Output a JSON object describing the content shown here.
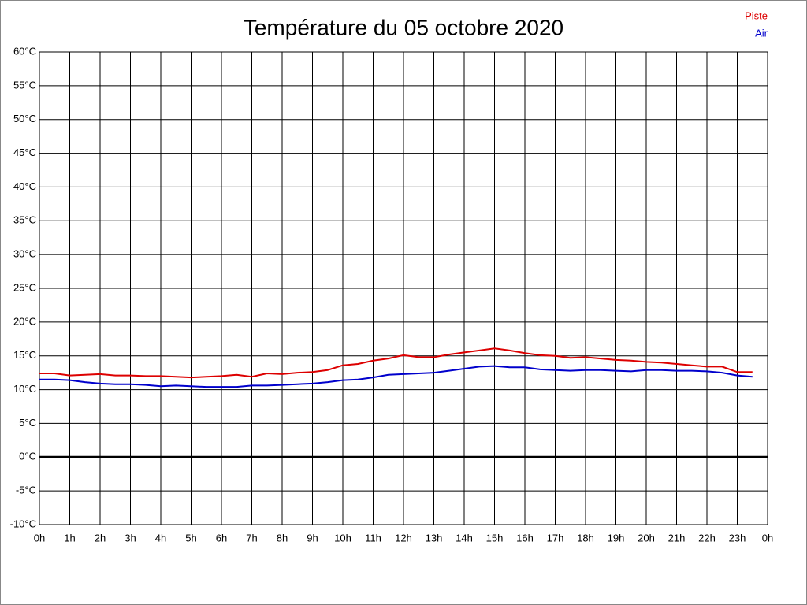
{
  "chart_data": {
    "type": "line",
    "title": "Température du 05 octobre 2020",
    "x": [
      0,
      0.5,
      1,
      1.5,
      2,
      2.5,
      3,
      3.5,
      4,
      4.5,
      5,
      5.5,
      6,
      6.5,
      7,
      7.5,
      8,
      8.5,
      9,
      9.5,
      10,
      10.5,
      11,
      11.5,
      12,
      12.5,
      13,
      13.5,
      14,
      14.5,
      15,
      15.5,
      16,
      16.5,
      17,
      17.5,
      18,
      18.5,
      19,
      19.5,
      20,
      20.5,
      21,
      21.5,
      22,
      22.5,
      23,
      23.5
    ],
    "series": [
      {
        "name": "Piste",
        "color": "#dd0000",
        "values": [
          12.4,
          12.4,
          12.1,
          12.2,
          12.3,
          12.1,
          12.1,
          12.0,
          12.0,
          11.9,
          11.8,
          11.9,
          12.0,
          12.2,
          11.9,
          12.4,
          12.3,
          12.5,
          12.6,
          12.9,
          13.6,
          13.8,
          14.3,
          14.6,
          15.1,
          14.8,
          14.8,
          15.2,
          15.5,
          15.8,
          16.1,
          15.8,
          15.4,
          15.1,
          15.0,
          14.7,
          14.8,
          14.6,
          14.4,
          14.3,
          14.1,
          14.0,
          13.8,
          13.6,
          13.4,
          13.4,
          12.6,
          12.6
        ]
      },
      {
        "name": "Air",
        "color": "#0000cc",
        "values": [
          11.5,
          11.5,
          11.4,
          11.1,
          10.9,
          10.8,
          10.8,
          10.7,
          10.5,
          10.6,
          10.5,
          10.4,
          10.4,
          10.4,
          10.6,
          10.6,
          10.7,
          10.8,
          10.9,
          11.1,
          11.4,
          11.5,
          11.8,
          12.2,
          12.3,
          12.4,
          12.5,
          12.8,
          13.1,
          13.4,
          13.5,
          13.3,
          13.3,
          13.0,
          12.9,
          12.8,
          12.9,
          12.9,
          12.8,
          12.7,
          12.9,
          12.9,
          12.8,
          12.8,
          12.7,
          12.5,
          12.1,
          11.9
        ]
      }
    ],
    "xlim": [
      0,
      24
    ],
    "xticks": [
      {
        "value": 0,
        "label": "0h"
      },
      {
        "value": 1,
        "label": "1h"
      },
      {
        "value": 2,
        "label": "2h"
      },
      {
        "value": 3,
        "label": "3h"
      },
      {
        "value": 4,
        "label": "4h"
      },
      {
        "value": 5,
        "label": "5h"
      },
      {
        "value": 6,
        "label": "6h"
      },
      {
        "value": 7,
        "label": "7h"
      },
      {
        "value": 8,
        "label": "8h"
      },
      {
        "value": 9,
        "label": "9h"
      },
      {
        "value": 10,
        "label": "10h"
      },
      {
        "value": 11,
        "label": "11h"
      },
      {
        "value": 12,
        "label": "12h"
      },
      {
        "value": 13,
        "label": "13h"
      },
      {
        "value": 14,
        "label": "14h"
      },
      {
        "value": 15,
        "label": "15h"
      },
      {
        "value": 16,
        "label": "16h"
      },
      {
        "value": 17,
        "label": "17h"
      },
      {
        "value": 18,
        "label": "18h"
      },
      {
        "value": 19,
        "label": "19h"
      },
      {
        "value": 20,
        "label": "20h"
      },
      {
        "value": 21,
        "label": "21h"
      },
      {
        "value": 22,
        "label": "22h"
      },
      {
        "value": 23,
        "label": "23h"
      },
      {
        "value": 24,
        "label": "0h"
      }
    ],
    "ylim": [
      -10,
      60
    ],
    "yticks": [
      {
        "value": -10,
        "label": "-10°C"
      },
      {
        "value": -5,
        "label": "-5°C"
      },
      {
        "value": 0,
        "label": "0°C"
      },
      {
        "value": 5,
        "label": "5°C"
      },
      {
        "value": 10,
        "label": "10°C"
      },
      {
        "value": 15,
        "label": "15°C"
      },
      {
        "value": 20,
        "label": "20°C"
      },
      {
        "value": 25,
        "label": "25°C"
      },
      {
        "value": 30,
        "label": "30°C"
      },
      {
        "value": 35,
        "label": "35°C"
      },
      {
        "value": 40,
        "label": "40°C"
      },
      {
        "value": 45,
        "label": "45°C"
      },
      {
        "value": 50,
        "label": "50°C"
      },
      {
        "value": 55,
        "label": "55°C"
      },
      {
        "value": 60,
        "label": "60°C"
      }
    ],
    "grid": true,
    "legend": "top-right"
  }
}
